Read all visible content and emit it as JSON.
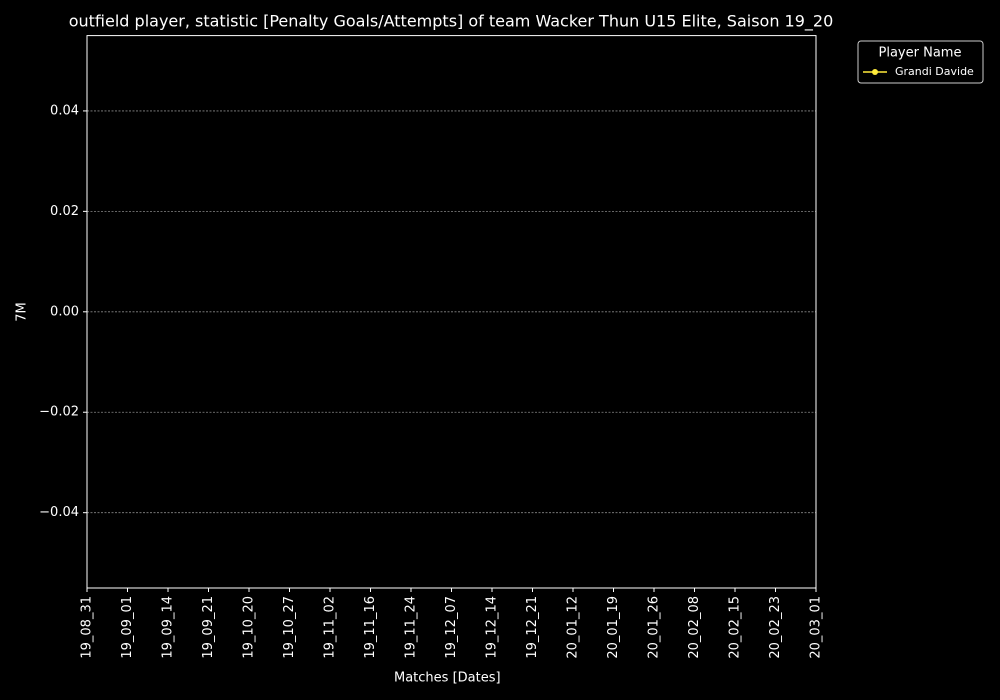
{
  "chart_data": {
    "type": "line",
    "title": "outfield player, statistic [Penalty Goals/Attempts] of team Wacker Thun U15 Elite, Saison 19_20",
    "x_label": "Matches [Dates]",
    "y_label": "7M",
    "categories": [
      "19_08_31",
      "19_09_01",
      "19_09_14",
      "19_09_21",
      "19_10_20",
      "19_10_27",
      "19_11_02",
      "19_11_16",
      "19_11_24",
      "19_12_07",
      "19_12_14",
      "19_12_21",
      "20_01_12",
      "20_01_19",
      "20_01_26",
      "20_02_08",
      "20_02_15",
      "20_02_23",
      "20_03_01"
    ],
    "series": [
      {
        "name": "Grandi Davide",
        "color": "#ffeb3b",
        "values": [
          null,
          null,
          null,
          null,
          null,
          null,
          null,
          null,
          null,
          null,
          null,
          null,
          null,
          null,
          null,
          null,
          null,
          null,
          null
        ]
      }
    ],
    "legend_title": "Player Name",
    "legend": "upper right outside",
    "ylim": [
      -0.055,
      0.055
    ],
    "yticks": [
      {
        "value": -0.04,
        "label": "−0.04"
      },
      {
        "value": -0.02,
        "label": "−0.02"
      },
      {
        "value": 0,
        "label": "0.00"
      },
      0.02,
      0.04
    ],
    "grid": true
  }
}
